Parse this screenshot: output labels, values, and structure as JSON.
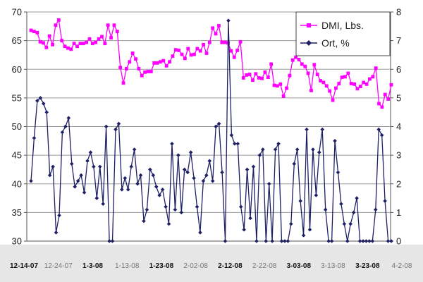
{
  "chart_data": {
    "type": "line",
    "left_axis": {
      "min": 30,
      "max": 70,
      "ticks": [
        "30",
        "35",
        "40",
        "45",
        "50",
        "55",
        "60",
        "65",
        "70"
      ]
    },
    "right_axis": {
      "min": 0,
      "max": 8,
      "ticks": [
        "0",
        "1",
        "2",
        "3",
        "4",
        "5",
        "6",
        "7",
        "8"
      ]
    },
    "grid": true,
    "legend_position": "top-right",
    "x_labels": [
      {
        "text": "12-14-07",
        "style": "bold"
      },
      {
        "text": "12-24-07",
        "style": "light"
      },
      {
        "text": "1-3-08",
        "style": "bold"
      },
      {
        "text": "1-13-08",
        "style": "light"
      },
      {
        "text": "1-23-08",
        "style": "bold"
      },
      {
        "text": "2-02-08",
        "style": "light"
      },
      {
        "text": "2-12-08",
        "style": "bold"
      },
      {
        "text": "2-22-08",
        "style": "light"
      },
      {
        "text": "3-03-08",
        "style": "bold"
      },
      {
        "text": "3-13-08",
        "style": "light"
      },
      {
        "text": "3-23-08",
        "style": "bold"
      },
      {
        "text": "4-2-08",
        "style": "light"
      }
    ],
    "series": [
      {
        "name": "DMI, Lbs.",
        "axis": "left",
        "color": "#ff00ff",
        "marker": "square",
        "values": [
          66.8,
          66.6,
          66.4,
          64.8,
          64.6,
          63.8,
          65.8,
          64.3,
          67.7,
          68.6,
          65,
          64,
          63.7,
          63.5,
          64.5,
          64,
          64.5,
          64.5,
          64.7,
          65.3,
          64.5,
          64.7,
          65.3,
          65.7,
          64.5,
          67.7,
          65.5,
          67.7,
          66.6,
          60.3,
          57.6,
          60.1,
          61.3,
          62.8,
          61.8,
          60.1,
          58.9,
          59.5,
          59.6,
          59.6,
          61.1,
          61.1,
          61.3,
          61.5,
          60.6,
          61.3,
          62.3,
          63.4,
          63.3,
          62.6,
          61.9,
          63.6,
          62.5,
          62.6,
          63.6,
          63.2,
          64.3,
          62.8,
          64.7,
          67.2,
          66.2,
          67.6,
          64.7,
          64.7,
          64.6,
          63.2,
          62.1,
          63.3,
          64.8,
          58.5,
          59,
          59.1,
          58.1,
          59.2,
          58.5,
          58.4,
          59.5,
          58.6,
          60.9,
          57.2,
          57.1,
          57.4,
          55.3,
          56.7,
          58.9,
          61.6,
          62.1,
          61.7,
          60.9,
          60.5,
          59.3,
          56.3,
          60.8,
          59.1,
          58,
          57.7,
          57.1,
          56.2,
          54.6,
          56.7,
          57.5,
          58.6,
          58.7,
          59.3,
          57.5,
          57.4,
          56.6,
          57,
          57.7,
          57.4,
          58.3,
          58.7,
          60.2,
          54,
          53.4,
          55.6,
          54.8,
          57.3
        ]
      },
      {
        "name": "Ort, %",
        "axis": "right",
        "color": "#1f1f66",
        "marker": "diamond",
        "values": [
          2.1,
          3.6,
          4.9,
          5,
          4.8,
          4.5,
          2.3,
          2.6,
          0.3,
          0.9,
          3.8,
          4,
          4.3,
          2.7,
          1.9,
          2.1,
          2.3,
          1.7,
          2.8,
          3.1,
          2.6,
          1.5,
          2.6,
          1.3,
          4,
          0,
          0,
          3.9,
          4.1,
          1.8,
          2.2,
          1.8,
          2.6,
          3.2,
          2,
          2.3,
          0.7,
          1.1,
          2.5,
          2.3,
          1.9,
          1.6,
          1.8,
          1.2,
          0.6,
          3.4,
          1.1,
          3,
          1,
          2.5,
          2.4,
          3.1,
          2.2,
          1.2,
          0.3,
          2.1,
          2.3,
          2.8,
          2.1,
          4,
          4.1,
          2.4,
          0,
          7.7,
          3.7,
          3.4,
          3.4,
          1.2,
          0.4,
          2.5,
          0.8,
          2.6,
          0,
          3,
          3.2,
          0,
          2,
          0,
          3.2,
          3.4,
          0,
          0,
          0,
          0.6,
          2.7,
          3.2,
          1.4,
          0.2,
          3.9,
          0.4,
          3.2,
          1.6,
          3.1,
          3.9,
          1.1,
          0,
          0,
          3.5,
          2.4,
          1.3,
          0.6,
          0,
          0.6,
          1,
          1.5,
          0,
          0,
          0,
          0,
          0,
          1.1,
          3.9,
          3.7,
          1.4,
          0,
          0
        ]
      }
    ]
  }
}
